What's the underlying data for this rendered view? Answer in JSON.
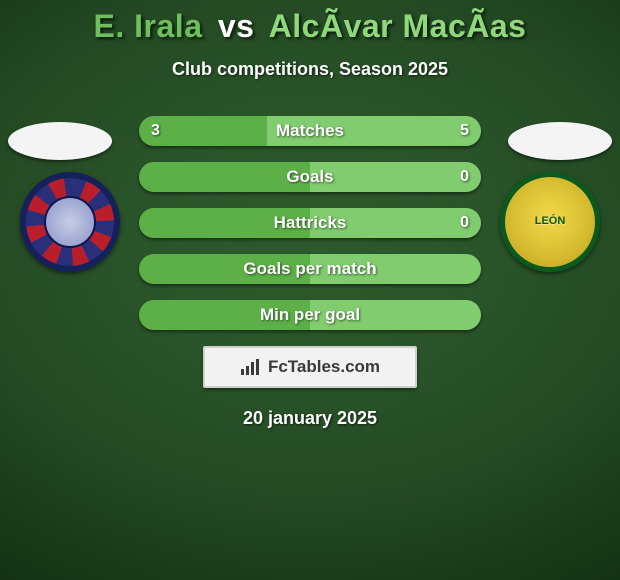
{
  "colors": {
    "player1": "#5db048",
    "player2": "#81cc6e",
    "title_p1": "#6fbf5c",
    "title_p2": "#8fd87c",
    "bar_text": "#ffffff"
  },
  "title": {
    "p1_name": "E. Irala",
    "vs": "vs",
    "p2_name": "AlcÃ­var MacÃ­as"
  },
  "subtitle": "Club competitions, Season 2025",
  "stats": {
    "rows": [
      {
        "label": "Matches",
        "left": "3",
        "right": "5",
        "left_pct": 37.5,
        "right_pct": 62.5
      },
      {
        "label": "Goals",
        "left": "",
        "right": "0",
        "left_pct": 50,
        "right_pct": 50
      },
      {
        "label": "Hattricks",
        "left": "",
        "right": "0",
        "left_pct": 50,
        "right_pct": 50
      },
      {
        "label": "Goals per match",
        "left": "",
        "right": "",
        "left_pct": 50,
        "right_pct": 50
      },
      {
        "label": "Min per goal",
        "left": "",
        "right": "",
        "left_pct": 50,
        "right_pct": 50
      }
    ]
  },
  "badge_right_text": "LEÓN",
  "footer": {
    "brand": "FcTables.com",
    "date": "20 january 2025"
  }
}
